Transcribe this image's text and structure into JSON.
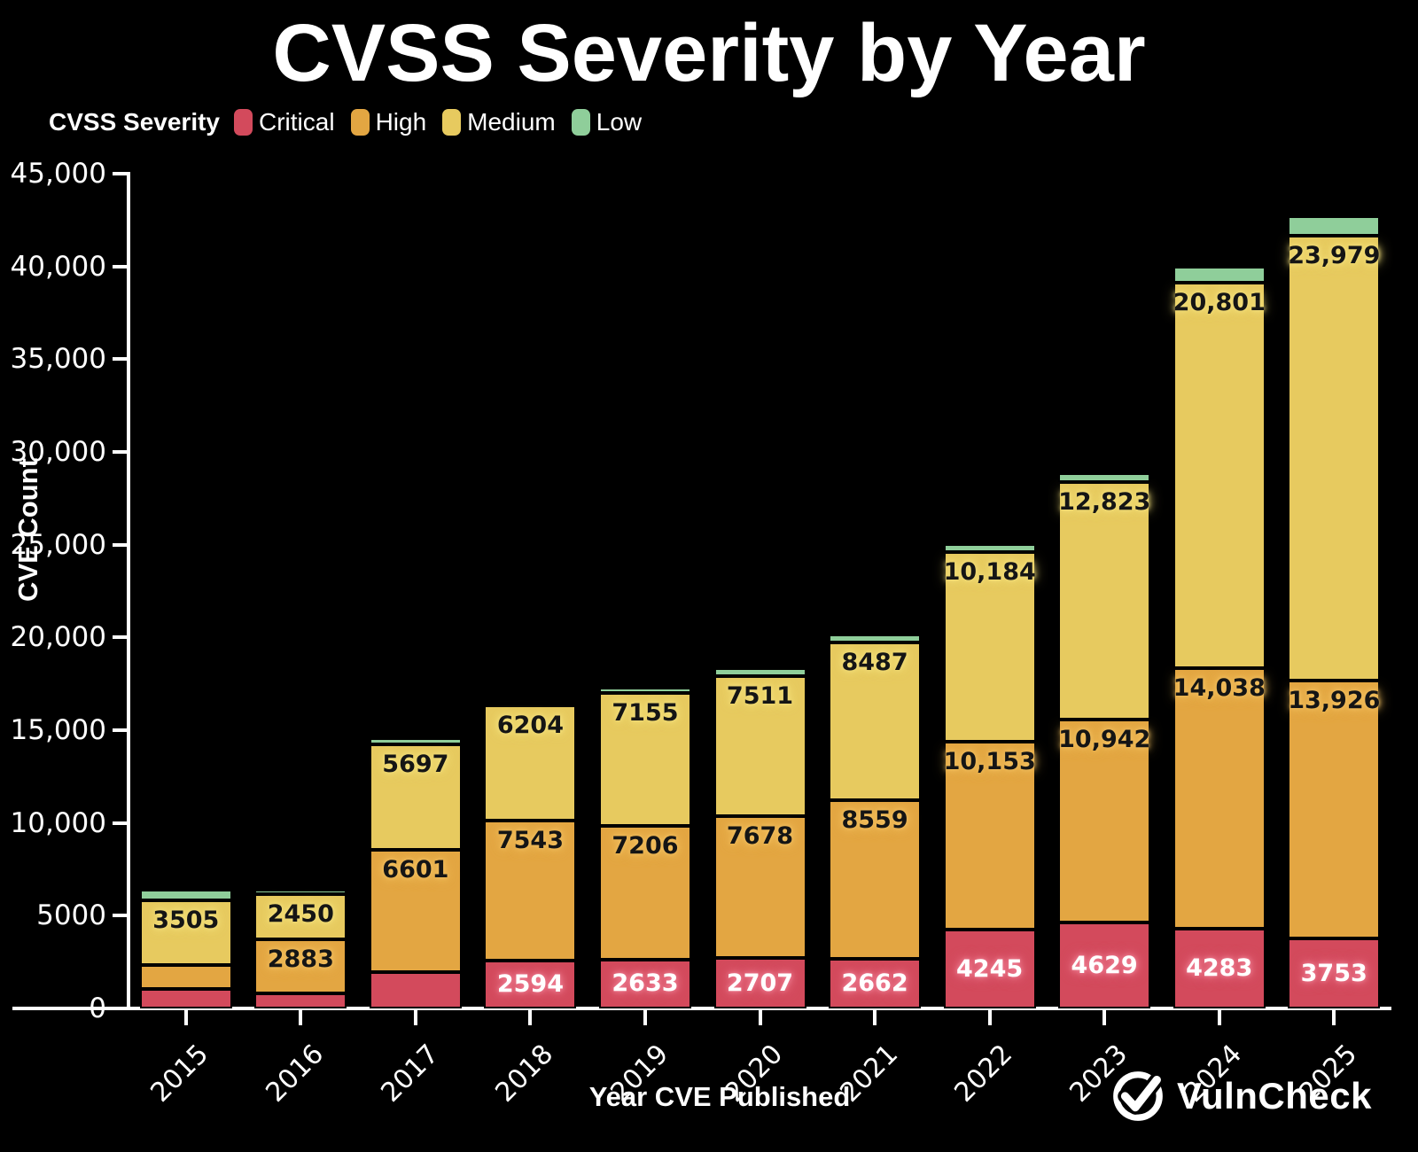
{
  "title": "CVSS Severity by Year",
  "legend": {
    "title": "CVSS Severity",
    "items": [
      {
        "label": "Critical",
        "color": "#D34A5C"
      },
      {
        "label": "High",
        "color": "#E3A642"
      },
      {
        "label": "Medium",
        "color": "#E7CA5F"
      },
      {
        "label": "Low",
        "color": "#8FCE9A"
      }
    ]
  },
  "chart_data": {
    "type": "bar",
    "stacked": true,
    "title": "CVSS Severity by Year",
    "xlabel": "Year CVE Published",
    "ylabel": "CVE Count",
    "ylim": [
      0,
      45000
    ],
    "grid": false,
    "legend_position": "top-left",
    "background": "#000000",
    "categories": [
      "2015",
      "2016",
      "2017",
      "2018",
      "2019",
      "2020",
      "2021",
      "2022",
      "2023",
      "2024",
      "2025"
    ],
    "ytick_labels": [
      "0",
      "5000",
      "10,000",
      "15,000",
      "20,000",
      "25,000",
      "30,000",
      "35,000",
      "40,000",
      "45,000"
    ],
    "series": [
      {
        "name": "Critical",
        "color": "#D34A5C",
        "values": [
          1060,
          820,
          1960,
          2594,
          2633,
          2707,
          2662,
          4245,
          4629,
          4283,
          3753
        ],
        "labels": [
          null,
          null,
          null,
          "2594",
          "2633",
          "2707",
          "2662",
          "4245",
          "4629",
          "4283",
          "3753"
        ]
      },
      {
        "name": "High",
        "color": "#E3A642",
        "values": [
          1270,
          2883,
          6601,
          7543,
          7206,
          7678,
          8559,
          10153,
          10942,
          14038,
          13926
        ],
        "labels": [
          null,
          "2883",
          "6601",
          "7543",
          "7206",
          "7678",
          "8559",
          "10,153",
          "10,942",
          "14,038",
          "13,926"
        ]
      },
      {
        "name": "Medium",
        "color": "#E7CA5F",
        "values": [
          3505,
          2450,
          5697,
          6204,
          7155,
          7511,
          8487,
          10184,
          12823,
          20801,
          23979
        ],
        "labels": [
          "3505",
          "2450",
          "5697",
          "6204",
          "7155",
          "7511",
          "8487",
          "10,184",
          "12,823",
          "20,801",
          "23,979"
        ]
      },
      {
        "name": "Low",
        "color": "#8FCE9A",
        "values": [
          550,
          240,
          320,
          190,
          280,
          430,
          470,
          440,
          440,
          870,
          1030
        ],
        "labels": [
          null,
          null,
          null,
          null,
          null,
          null,
          null,
          null,
          null,
          null,
          null
        ]
      }
    ]
  },
  "footer": {
    "brand": "VulnCheck"
  }
}
